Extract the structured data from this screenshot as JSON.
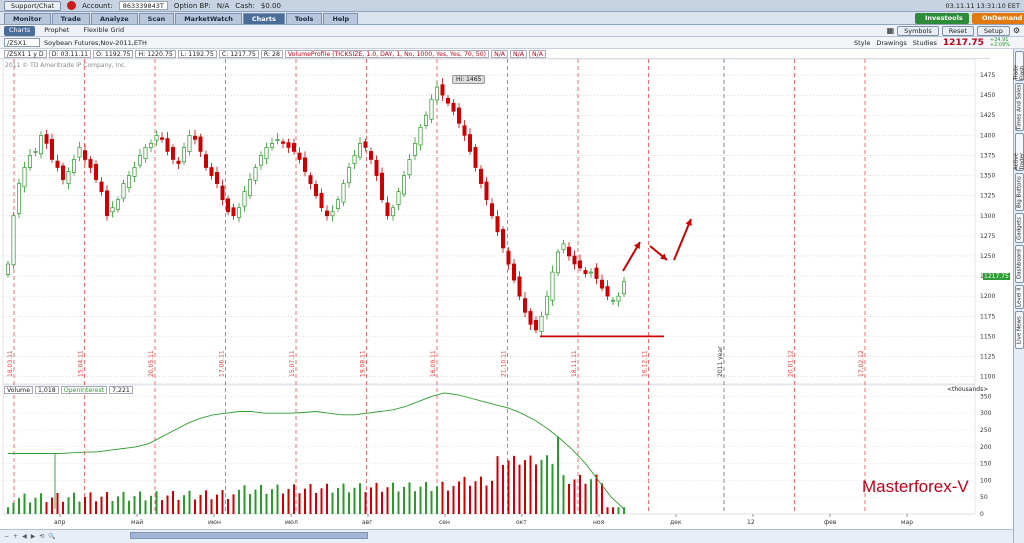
{
  "topbar": {
    "support_label": "Support/Chat",
    "account_label": "Account:",
    "account_value": "863339843T",
    "option_bp_label": "Option BP:",
    "option_bp_value": "N/A",
    "cash_label": "Cash:",
    "cash_value": "$0.00",
    "datetime": "03.11.11 13:31:10 EET"
  },
  "tabs": [
    "Monitor",
    "Trade",
    "Analyze",
    "Scan",
    "MarketWatch",
    "Charts",
    "Tools",
    "Help"
  ],
  "active_tab": "Charts",
  "ext_buttons": {
    "investools": "Investools",
    "ondemand": "OnDemand"
  },
  "subtabs": [
    "Charts",
    "Prophet",
    "Flexible Grid"
  ],
  "right_controls": {
    "symbols": "Symbols",
    "reset": "Reset",
    "setup": "Setup"
  },
  "chart_header": {
    "symbol": "/ZSX1",
    "description": "Soybean Futures,Nov-2011,ETH",
    "style": "Style",
    "drawings": "Drawings",
    "studies": "Studies",
    "last_price": "1217.75",
    "change_1": "+24.91",
    "change_2": "+2.09%"
  },
  "info_bar": {
    "period": "/ZSX1 1 y D",
    "date": "D: 03.11.11",
    "open": "O: 1192.75",
    "high": "H: 1220.75",
    "low": "L: 1192.75",
    "close": "C: 1217.75",
    "r": "R: 28",
    "study": "VolumeProfile (TICKSIZE, 1.0, DAY, 1, No, 1000, Yes, Yes, 70, 50)",
    "na1": "N/A",
    "na2": "N/A",
    "na3": "N/A"
  },
  "copyright": "2011 © TD Ameritrade IP Company, Inc.",
  "hi_label": "Hi: 1465",
  "last_price_tag": "1217.75",
  "sidebar_items": [
    "Live News",
    "Level II",
    "Dashboard",
    "Gadgets",
    "Big Buttons",
    "Active Trader",
    "Times And Sales",
    "Trade Flash"
  ],
  "volume_legend": {
    "volume_label": "Volume",
    "volume_value": "1,018",
    "oi_label": "OpenInterest",
    "oi_value": "7,221",
    "thousands": "<thousands>"
  },
  "watermark": "Masterforex-V",
  "colors": {
    "up": "#2a9a2a",
    "down": "#cc0000",
    "oi_line": "#2f9e2f",
    "grid_red": "#ee3333",
    "accent": "#4b6d9a"
  },
  "chart_data": {
    "type": "candlestick",
    "title": "Soybean Futures,Nov-2011,ETH",
    "y_ticks": [
      1100,
      1125,
      1150,
      1175,
      1200,
      1225,
      1250,
      1275,
      1300,
      1325,
      1350,
      1375,
      1400,
      1425,
      1450,
      1475
    ],
    "ylim": [
      1097,
      1485
    ],
    "date_markers": [
      "18.03.11",
      "15.04.11",
      "20.05.11",
      "17.06.11",
      "15.07.11",
      "19.08.11",
      "16.09.11",
      "21.10.11",
      "18.11.11",
      "16.12.11",
      "2011 year",
      "20.01.12",
      "17.02.12"
    ],
    "x_month_labels": [
      "апр",
      "май",
      "июн",
      "июл",
      "авг",
      "сен",
      "окт",
      "ноя",
      "дек",
      "12",
      "фев",
      "мар"
    ],
    "close_series": [
      1240,
      1300,
      1340,
      1360,
      1375,
      1380,
      1400,
      1390,
      1370,
      1360,
      1345,
      1355,
      1370,
      1385,
      1370,
      1360,
      1345,
      1330,
      1300,
      1310,
      1320,
      1340,
      1350,
      1360,
      1375,
      1385,
      1390,
      1400,
      1395,
      1380,
      1370,
      1365,
      1385,
      1400,
      1395,
      1380,
      1360,
      1350,
      1340,
      1320,
      1305,
      1300,
      1310,
      1330,
      1345,
      1360,
      1375,
      1385,
      1390,
      1395,
      1390,
      1385,
      1380,
      1370,
      1355,
      1340,
      1325,
      1310,
      1300,
      1305,
      1320,
      1340,
      1360,
      1375,
      1390,
      1385,
      1370,
      1350,
      1320,
      1300,
      1310,
      1330,
      1350,
      1370,
      1390,
      1410,
      1425,
      1445,
      1460,
      1450,
      1440,
      1430,
      1415,
      1400,
      1380,
      1360,
      1340,
      1320,
      1300,
      1280,
      1260,
      1240,
      1220,
      1200,
      1180,
      1165,
      1158,
      1175,
      1200,
      1230,
      1255,
      1265,
      1250,
      1240,
      1235,
      1228,
      1230,
      1222,
      1210,
      1200,
      1195,
      1200,
      1218
    ],
    "resistance_low": 1150,
    "volume_ylim": [
      0,
      360
    ],
    "volume_ticks": [
      0,
      50,
      100,
      150,
      200,
      250,
      300,
      350
    ],
    "open_interest": [
      180,
      180,
      180,
      180,
      180,
      182,
      184,
      185,
      190,
      195,
      200,
      210,
      230,
      250,
      270,
      285,
      295,
      300,
      305,
      305,
      300,
      300,
      300,
      302,
      305,
      300,
      295,
      295,
      300,
      305,
      310,
      320,
      335,
      350,
      360,
      355,
      345,
      335,
      325,
      315,
      300,
      280,
      255,
      225,
      190,
      150,
      100,
      50,
      15
    ]
  }
}
